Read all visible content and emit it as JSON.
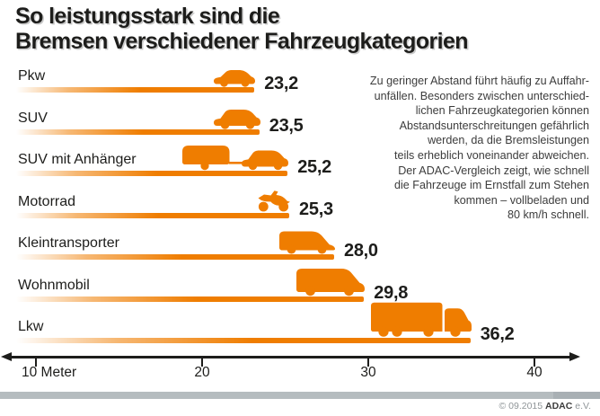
{
  "title": {
    "line1": "So leistungsstark sind die",
    "line2": "Bremsen verschiedener Fahrzeugkategorien"
  },
  "description": {
    "text": "Zu geringer Abstand führt häufig zu Auffahr-\nunfällen. Besonders zwischen unterschied-\nlichen Fahrzeugkategorien können\nAbstandsunterschreitungen gefährlich\nwerden, da die Bremsleistungen\nteils erheblich voneinander abweichen.\nDer ADAC-Vergleich zeigt, wie schnell\ndie Fahrzeuge im Ernstfall zum Stehen\nkommen – vollbeladen und\n80 km/h schnell."
  },
  "chart_data": {
    "type": "bar",
    "orientation": "horizontal",
    "title": "So leistungsstark sind die Bremsen verschiedener Fahrzeugkategorien",
    "unit": "Meter",
    "categories": [
      "Pkw",
      "SUV",
      "SUV mit Anhänger",
      "Motorrad",
      "Kleintransporter",
      "Wohnmobil",
      "Lkw"
    ],
    "values": [
      23.2,
      23.5,
      25.2,
      25.3,
      28.0,
      29.8,
      36.2
    ],
    "value_labels": [
      "23,2",
      "23,5",
      "25,2",
      "25,3",
      "28,0",
      "29,8",
      "36,2"
    ],
    "icons": [
      "car",
      "suv",
      "suv-trailer",
      "motorcycle",
      "van",
      "motorhome",
      "truck"
    ],
    "bar_color": "#ef7d00",
    "grid": false,
    "legend": false,
    "x_axis": {
      "range": [
        10,
        40
      ],
      "ticks": [
        {
          "label": "10 Meter",
          "value": 10
        },
        {
          "label": "20",
          "value": 20
        },
        {
          "label": "30",
          "value": 30
        },
        {
          "label": "40",
          "value": 40
        }
      ]
    }
  },
  "footer": {
    "copyright": "© 09.2015 ",
    "brand": "ADAC",
    "suffix": " e.V."
  }
}
